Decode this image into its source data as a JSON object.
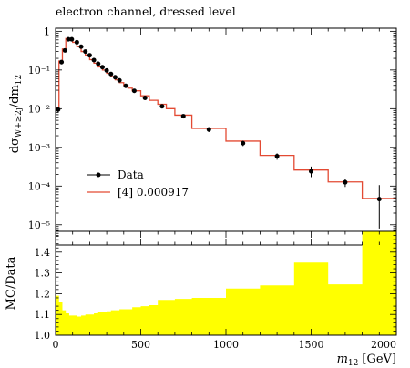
{
  "chart_data": [
    {
      "type": "line",
      "title": "electron channel, dressed level",
      "ylabel": "dσ_{W+≥2j}/dm_{12}",
      "yscale": "log",
      "xlim": [
        0,
        2000
      ],
      "ylim": [
        3e-06,
        1.2
      ],
      "ytick_labels": [
        "1",
        "10⁻¹",
        "10⁻²",
        "10⁻³",
        "10⁻⁴",
        "10⁻⁵"
      ],
      "ytick_values": [
        1,
        0.1,
        0.01,
        0.001,
        0.0001,
        1e-05
      ],
      "legend_position": "lower-left",
      "series": [
        {
          "name": "Data",
          "style": "points-with-errorbars",
          "color": "#000000",
          "points": [
            {
              "x": 15,
              "y": 0.0095,
              "err_lo": 0.0015,
              "err_hi": 0.0015
            },
            {
              "x": 35,
              "y": 0.16,
              "err_lo": 0.02,
              "err_hi": 0.02
            },
            {
              "x": 55,
              "y": 0.32,
              "err_lo": 0.03,
              "err_hi": 0.03
            },
            {
              "x": 75,
              "y": 0.62,
              "err_lo": 0.05,
              "err_hi": 0.05
            },
            {
              "x": 95,
              "y": 0.62,
              "err_lo": 0.05,
              "err_hi": 0.05
            },
            {
              "x": 125,
              "y": 0.52,
              "err_lo": 0.04,
              "err_hi": 0.04
            },
            {
              "x": 150,
              "y": 0.4,
              "err_lo": 0.03,
              "err_hi": 0.03
            },
            {
              "x": 175,
              "y": 0.3,
              "err_lo": 0.025,
              "err_hi": 0.025
            },
            {
              "x": 200,
              "y": 0.24,
              "err_lo": 0.02,
              "err_hi": 0.02
            },
            {
              "x": 225,
              "y": 0.18,
              "err_lo": 0.015,
              "err_hi": 0.015
            },
            {
              "x": 250,
              "y": 0.145,
              "err_lo": 0.012,
              "err_hi": 0.012
            },
            {
              "x": 275,
              "y": 0.118,
              "err_lo": 0.01,
              "err_hi": 0.01
            },
            {
              "x": 300,
              "y": 0.097,
              "err_lo": 0.008,
              "err_hi": 0.008
            },
            {
              "x": 325,
              "y": 0.079,
              "err_lo": 0.007,
              "err_hi": 0.007
            },
            {
              "x": 350,
              "y": 0.065,
              "err_lo": 0.006,
              "err_hi": 0.006
            },
            {
              "x": 375,
              "y": 0.054,
              "err_lo": 0.005,
              "err_hi": 0.005
            },
            {
              "x": 412,
              "y": 0.039,
              "err_lo": 0.004,
              "err_hi": 0.004
            },
            {
              "x": 462,
              "y": 0.029,
              "err_lo": 0.003,
              "err_hi": 0.003
            },
            {
              "x": 525,
              "y": 0.019,
              "err_lo": 0.002,
              "err_hi": 0.002
            },
            {
              "x": 625,
              "y": 0.0115,
              "err_lo": 0.0012,
              "err_hi": 0.0012
            },
            {
              "x": 750,
              "y": 0.0064,
              "err_lo": 0.0008,
              "err_hi": 0.0008
            },
            {
              "x": 900,
              "y": 0.0029,
              "err_lo": 0.0004,
              "err_hi": 0.0004
            },
            {
              "x": 1100,
              "y": 0.00128,
              "err_lo": 0.0002,
              "err_hi": 0.0002
            },
            {
              "x": 1300,
              "y": 0.00059,
              "err_lo": 0.00011,
              "err_hi": 0.00011
            },
            {
              "x": 1500,
              "y": 0.00024,
              "err_lo": 7e-05,
              "err_hi": 8e-05
            },
            {
              "x": 1700,
              "y": 0.000125,
              "err_lo": 3e-05,
              "err_hi": 3e-05
            },
            {
              "x": 1900,
              "y": 4.6e-05,
              "err_lo": 3.8e-05,
              "err_hi": 6e-05
            }
          ]
        },
        {
          "name": "[4] 0.000917",
          "style": "step",
          "color": "#e34a33",
          "bins": [
            {
              "lo": 0,
              "hi": 20,
              "y": 0.0105
            },
            {
              "lo": 20,
              "hi": 40,
              "y": 0.17
            },
            {
              "lo": 40,
              "hi": 60,
              "y": 0.35
            },
            {
              "lo": 60,
              "hi": 80,
              "y": 0.65
            },
            {
              "lo": 80,
              "hi": 100,
              "y": 0.64
            },
            {
              "lo": 100,
              "hi": 125,
              "y": 0.52
            },
            {
              "lo": 125,
              "hi": 150,
              "y": 0.4
            },
            {
              "lo": 150,
              "hi": 175,
              "y": 0.3
            },
            {
              "lo": 175,
              "hi": 200,
              "y": 0.24
            },
            {
              "lo": 200,
              "hi": 225,
              "y": 0.185
            },
            {
              "lo": 225,
              "hi": 250,
              "y": 0.15
            },
            {
              "lo": 250,
              "hi": 275,
              "y": 0.12
            },
            {
              "lo": 275,
              "hi": 300,
              "y": 0.1
            },
            {
              "lo": 300,
              "hi": 325,
              "y": 0.082
            },
            {
              "lo": 325,
              "hi": 350,
              "y": 0.068
            },
            {
              "lo": 350,
              "hi": 375,
              "y": 0.056
            },
            {
              "lo": 375,
              "hi": 400,
              "y": 0.047
            },
            {
              "lo": 400,
              "hi": 425,
              "y": 0.04
            },
            {
              "lo": 425,
              "hi": 450,
              "y": 0.034
            },
            {
              "lo": 450,
              "hi": 500,
              "y": 0.029
            },
            {
              "lo": 500,
              "hi": 550,
              "y": 0.0215
            },
            {
              "lo": 550,
              "hi": 600,
              "y": 0.0165
            },
            {
              "lo": 600,
              "hi": 650,
              "y": 0.013
            },
            {
              "lo": 650,
              "hi": 700,
              "y": 0.01
            },
            {
              "lo": 700,
              "hi": 800,
              "y": 0.0068
            },
            {
              "lo": 800,
              "hi": 1000,
              "y": 0.0031
            },
            {
              "lo": 1000,
              "hi": 1200,
              "y": 0.00145
            },
            {
              "lo": 1200,
              "hi": 1400,
              "y": 0.00062
            },
            {
              "lo": 1400,
              "hi": 1600,
              "y": 0.00026
            },
            {
              "lo": 1600,
              "hi": 1800,
              "y": 0.000128
            },
            {
              "lo": 1800,
              "hi": 2000,
              "y": 4.8e-05
            }
          ]
        }
      ]
    },
    {
      "type": "area",
      "ylabel": "MC/Data",
      "xlabel_var": "m",
      "xlabel_sub": "12",
      "xlabel_unit": "[GeV]",
      "xlim": [
        0,
        2000
      ],
      "ylim": [
        1.0,
        1.5
      ],
      "xtick_values": [
        0,
        500,
        1000,
        1500,
        2000
      ],
      "xtick_labels": [
        "0",
        "500",
        "1000",
        "1500",
        "2000"
      ],
      "ytick_values": [
        1.0,
        1.1,
        1.2,
        1.3,
        1.4
      ],
      "ytick_labels": [
        "1.0",
        "1.1",
        "1.2",
        "1.3",
        "1.4"
      ],
      "fill_color": "#ffff00",
      "bins": [
        {
          "lo": 0,
          "hi": 20,
          "y": 1.19
        },
        {
          "lo": 20,
          "hi": 40,
          "y": 1.16
        },
        {
          "lo": 40,
          "hi": 60,
          "y": 1.12
        },
        {
          "lo": 60,
          "hi": 80,
          "y": 1.105
        },
        {
          "lo": 80,
          "hi": 100,
          "y": 1.095
        },
        {
          "lo": 100,
          "hi": 125,
          "y": 1.095
        },
        {
          "lo": 125,
          "hi": 150,
          "y": 1.09
        },
        {
          "lo": 150,
          "hi": 175,
          "y": 1.095
        },
        {
          "lo": 175,
          "hi": 200,
          "y": 1.1
        },
        {
          "lo": 200,
          "hi": 225,
          "y": 1.1
        },
        {
          "lo": 225,
          "hi": 250,
          "y": 1.105
        },
        {
          "lo": 250,
          "hi": 275,
          "y": 1.11
        },
        {
          "lo": 275,
          "hi": 300,
          "y": 1.11
        },
        {
          "lo": 300,
          "hi": 325,
          "y": 1.115
        },
        {
          "lo": 325,
          "hi": 350,
          "y": 1.12
        },
        {
          "lo": 350,
          "hi": 375,
          "y": 1.12
        },
        {
          "lo": 375,
          "hi": 400,
          "y": 1.125
        },
        {
          "lo": 400,
          "hi": 425,
          "y": 1.125
        },
        {
          "lo": 425,
          "hi": 450,
          "y": 1.125
        },
        {
          "lo": 450,
          "hi": 500,
          "y": 1.135
        },
        {
          "lo": 500,
          "hi": 550,
          "y": 1.14
        },
        {
          "lo": 550,
          "hi": 600,
          "y": 1.145
        },
        {
          "lo": 600,
          "hi": 650,
          "y": 1.17
        },
        {
          "lo": 650,
          "hi": 700,
          "y": 1.17
        },
        {
          "lo": 700,
          "hi": 800,
          "y": 1.175
        },
        {
          "lo": 800,
          "hi": 1000,
          "y": 1.18
        },
        {
          "lo": 1000,
          "hi": 1200,
          "y": 1.225
        },
        {
          "lo": 1200,
          "hi": 1400,
          "y": 1.24
        },
        {
          "lo": 1400,
          "hi": 1600,
          "y": 1.35
        },
        {
          "lo": 1600,
          "hi": 1800,
          "y": 1.245
        },
        {
          "lo": 1800,
          "hi": 2000,
          "y": 1.5
        }
      ]
    }
  ]
}
